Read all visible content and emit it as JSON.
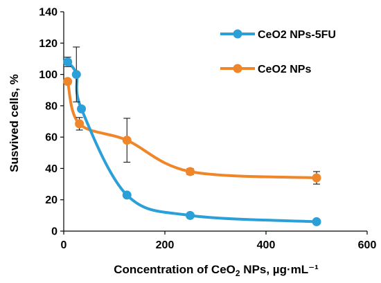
{
  "chart_data": {
    "type": "line",
    "xlabel": {
      "pre": "Concentration of CeO",
      "sub": "2",
      "post": " NPs, µg·mL⁻¹"
    },
    "ylabel": "Susvived cells, %",
    "xlim": [
      0,
      600
    ],
    "ylim": [
      0,
      140
    ],
    "xticks": [
      0,
      200,
      400,
      600
    ],
    "yticks": [
      0,
      20,
      40,
      60,
      80,
      100,
      120,
      140
    ],
    "legend": "top-right",
    "grid": false,
    "series": [
      {
        "name": "CeO2 NPs-5FU",
        "color": "#2BA0D8",
        "x": [
          7.8,
          25,
          35,
          125,
          250,
          500
        ],
        "y": [
          108,
          100,
          78,
          23,
          10,
          6
        ],
        "err": [
          3,
          17.5,
          0,
          0,
          0,
          0
        ]
      },
      {
        "name": "CeO2 NPs",
        "color": "#F0862A",
        "x": [
          7.8,
          31,
          125,
          250,
          500
        ],
        "y": [
          95.5,
          68.5,
          58,
          38,
          34
        ],
        "err": [
          0,
          4,
          14,
          2,
          4
        ]
      }
    ]
  }
}
